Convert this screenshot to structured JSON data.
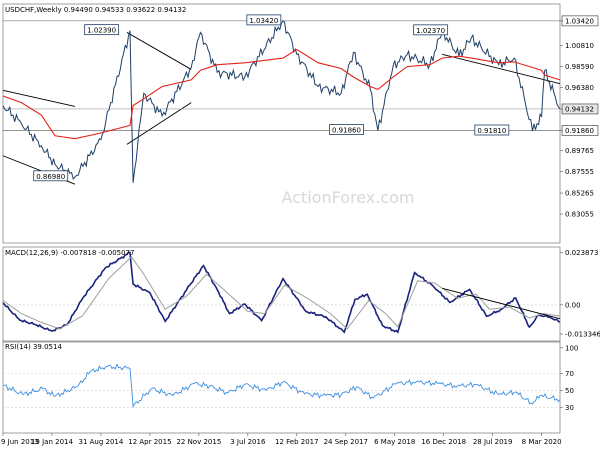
{
  "colors": {
    "price": "#1f3f66",
    "ma": "#e2231a",
    "macd_line": "#1a237e",
    "signal_line": "#9e9e9e",
    "rsi": "#3f8fe0",
    "trend": "#000000",
    "grid": "#c0c0c0"
  },
  "header": {
    "price_title": "USDCHF,Weekly  0.94490 0.94533 0.93622 0.94132",
    "macd_title": "MACD(12,26,9) -0.007818 -0.005077",
    "rsi_title": "RSI(14) 39.0514"
  },
  "watermark": "ActionForex.com",
  "x_ticks": [
    "9 Jun 2013",
    "19 Jan 2014",
    "31 Aug 2014",
    "12 Apr 2015",
    "22 Nov 2015",
    "3 Jul 2016",
    "12 Feb 2017",
    "24 Sep 2017",
    "6 May 2018",
    "16 Dec 2018",
    "28 Jul 2019",
    "8 Mar 2020"
  ],
  "chart_data": [
    {
      "type": "line",
      "name": "USDCHF weekly price",
      "ylim": [
        0.8,
        1.052
      ],
      "y_ticks": [
        "1.03420",
        "1.00810",
        "0.98590",
        "0.96380",
        "0.94132",
        "0.91860",
        "0.89765",
        "0.87555",
        "0.85265",
        "0.83055"
      ],
      "key_levels": [
        {
          "label": "1.03420",
          "value": 1.0342
        },
        {
          "label": "0.91860",
          "value": 0.9186
        }
      ],
      "current_price": {
        "label": "0.94132",
        "value": 0.94132
      },
      "annotations": [
        "0.86980",
        "1.02390",
        "1.03420",
        "0.91860",
        "1.02370",
        "0.91810"
      ],
      "x": [
        "2013-06-09",
        "2013-09-01",
        "2013-12-01",
        "2014-02-02",
        "2014-05-04",
        "2014-08-31",
        "2015-01-11",
        "2015-01-25",
        "2015-03-15",
        "2015-06-07",
        "2015-10-18",
        "2015-11-29",
        "2016-02-14",
        "2016-06-19",
        "2016-12-11",
        "2017-02-12",
        "2017-05-21",
        "2017-09-03",
        "2017-10-29",
        "2018-01-14",
        "2018-02-18",
        "2018-04-29",
        "2018-07-01",
        "2018-10-14",
        "2018-12-09",
        "2019-02-24",
        "2019-04-21",
        "2019-08-25",
        "2019-11-03",
        "2020-01-26",
        "2020-03-08",
        "2020-03-22",
        "2020-05-31"
      ],
      "y": [
        0.9449,
        0.926,
        0.9025,
        0.883,
        0.8695,
        0.909,
        1.0239,
        0.8635,
        0.958,
        0.934,
        0.985,
        1.022,
        0.98,
        0.975,
        1.0342,
        0.999,
        0.965,
        0.958,
        1.001,
        0.962,
        0.9186,
        0.987,
        0.9985,
        0.988,
        1.0237,
        0.997,
        1.016,
        0.988,
        0.995,
        0.9181,
        0.9335,
        0.982,
        0.94132
      ],
      "ma": {
        "name": "moving average",
        "values": [
          0.955,
          0.948,
          0.935,
          0.913,
          0.91,
          0.916,
          0.924,
          0.945,
          0.952,
          0.965,
          0.972,
          0.982,
          0.988,
          0.99,
          0.995,
          1.004,
          0.99,
          0.984,
          0.975,
          0.965,
          0.962,
          0.975,
          0.986,
          0.988,
          0.995,
          0.997,
          0.995,
          0.99,
          0.991,
          0.985,
          0.982,
          0.977,
          0.972
        ]
      },
      "channels": [
        {
          "x": [
            "2013-06-09",
            "2014-05-04"
          ],
          "y": [
            0.961,
            0.944
          ]
        },
        {
          "x": [
            "2013-06-09",
            "2014-05-04"
          ],
          "y": [
            0.892,
            0.862
          ]
        },
        {
          "x": [
            "2014-12-28",
            "2015-10-18"
          ],
          "y": [
            1.022,
            0.983
          ]
        },
        {
          "x": [
            "2014-12-28",
            "2015-10-18"
          ],
          "y": [
            0.904,
            0.948
          ]
        },
        {
          "x": [
            "2018-12-09",
            "2020-05-31"
          ],
          "y": [
            0.999,
            0.968
          ]
        }
      ]
    },
    {
      "type": "line",
      "name": "MACD(12,26,9)",
      "ylim": [
        -0.017,
        0.0265
      ],
      "y_ticks": [
        "0.023873",
        "0.00",
        "-0.013346"
      ],
      "series": [
        {
          "name": "MACD",
          "x": [
            "2013-06-09",
            "2013-08-25",
            "2013-11-03",
            "2014-01-19",
            "2014-03-30",
            "2014-06-08",
            "2014-09-21",
            "2015-01-11",
            "2015-01-25",
            "2015-04-12",
            "2015-06-21",
            "2015-10-11",
            "2015-12-13",
            "2016-02-14",
            "2016-04-10",
            "2016-06-19",
            "2016-09-04",
            "2016-12-11",
            "2017-03-26",
            "2017-06-25",
            "2017-09-17",
            "2017-11-05",
            "2017-12-31",
            "2018-03-11",
            "2018-05-20",
            "2018-08-05",
            "2018-10-28",
            "2019-01-13",
            "2019-04-14",
            "2019-06-30",
            "2019-09-01",
            "2019-11-10",
            "2020-01-12",
            "2020-02-23",
            "2020-04-12",
            "2020-05-31"
          ],
          "values": [
            0.0009,
            -0.007,
            -0.009,
            -0.012,
            -0.009,
            0.003,
            0.017,
            0.024,
            0.0095,
            0.0055,
            -0.0075,
            0.009,
            0.018,
            0.007,
            -0.004,
            0.0004,
            -0.0072,
            0.012,
            -0.003,
            -0.0055,
            -0.0125,
            0.0025,
            0.0049,
            -0.0095,
            -0.0125,
            0.0148,
            0.0087,
            0.0011,
            0.0071,
            -0.0052,
            -0.0023,
            0.0032,
            -0.0102,
            -0.0047,
            -0.0055,
            -0.0078
          ]
        },
        {
          "name": "Signal",
          "x": [
            "2013-06-09",
            "2013-09-01",
            "2013-12-01",
            "2014-02-23",
            "2014-06-08",
            "2014-10-05",
            "2015-01-18",
            "2015-03-15",
            "2015-06-21",
            "2015-09-27",
            "2015-12-27",
            "2016-04-17",
            "2016-07-03",
            "2016-09-18",
            "2016-12-18",
            "2017-04-02",
            "2017-07-16",
            "2017-10-01",
            "2018-01-07",
            "2018-03-25",
            "2018-05-20",
            "2018-08-19",
            "2018-11-04",
            "2019-02-17",
            "2019-05-12",
            "2019-07-14",
            "2019-10-13",
            "2020-01-12",
            "2020-03-15",
            "2020-05-31"
          ],
          "values": [
            0.002,
            -0.004,
            -0.008,
            -0.011,
            -0.005,
            0.012,
            0.022,
            0.014,
            -0.002,
            0.004,
            0.014,
            0.004,
            -0.003,
            -0.004,
            0.009,
            0.003,
            -0.004,
            -0.011,
            0.002,
            -0.004,
            -0.01,
            0.011,
            0.01,
            0.003,
            0.005,
            -0.002,
            -0.001,
            -0.006,
            -0.004,
            -0.0051
          ]
        }
      ],
      "trend": {
        "x": [
          "2018-12-09",
          "2020-05-31"
        ],
        "y": [
          0.0076,
          -0.0063
        ]
      }
    },
    {
      "type": "line",
      "name": "RSI(14)",
      "ylim": [
        0,
        108
      ],
      "y_ticks": [
        "100",
        "70",
        "50",
        "30"
      ],
      "x": [
        "2013-06-09",
        "2013-09-08",
        "2013-12-08",
        "2014-02-02",
        "2014-05-18",
        "2014-07-13",
        "2014-09-28",
        "2015-01-11",
        "2015-01-25",
        "2015-04-19",
        "2015-07-26",
        "2015-11-01",
        "2016-01-10",
        "2016-04-03",
        "2016-06-19",
        "2016-09-25",
        "2016-12-11",
        "2017-03-19",
        "2017-06-25",
        "2017-09-03",
        "2017-11-12",
        "2018-01-28",
        "2018-05-13",
        "2018-08-12",
        "2018-11-18",
        "2019-02-17",
        "2019-05-12",
        "2019-08-25",
        "2019-11-10",
        "2020-01-26",
        "2020-03-01",
        "2020-05-31"
      ],
      "values": [
        56,
        45,
        52,
        43,
        55,
        72,
        78,
        76,
        31,
        52,
        44,
        58,
        55,
        47,
        57,
        50,
        60,
        46,
        44,
        45,
        54,
        41,
        58,
        60,
        58,
        55,
        57,
        45,
        48,
        34,
        44,
        39.05
      ]
    }
  ]
}
